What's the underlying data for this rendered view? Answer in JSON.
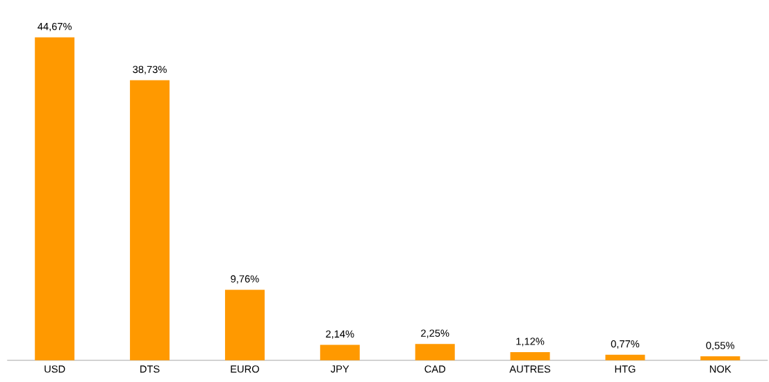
{
  "chart_data": {
    "type": "bar",
    "categories": [
      "USD",
      "DTS",
      "EURO",
      "JPY",
      "CAD",
      "AUTRES",
      "HTG",
      "NOK"
    ],
    "values": [
      44.67,
      38.73,
      9.76,
      2.14,
      2.25,
      1.12,
      0.77,
      0.55
    ],
    "value_labels": [
      "44,67%",
      "38,73%",
      "9,76%",
      "2,14%",
      "2,25%",
      "1,12%",
      "0,77%",
      "0,55%"
    ],
    "color": "#ff9900"
  }
}
